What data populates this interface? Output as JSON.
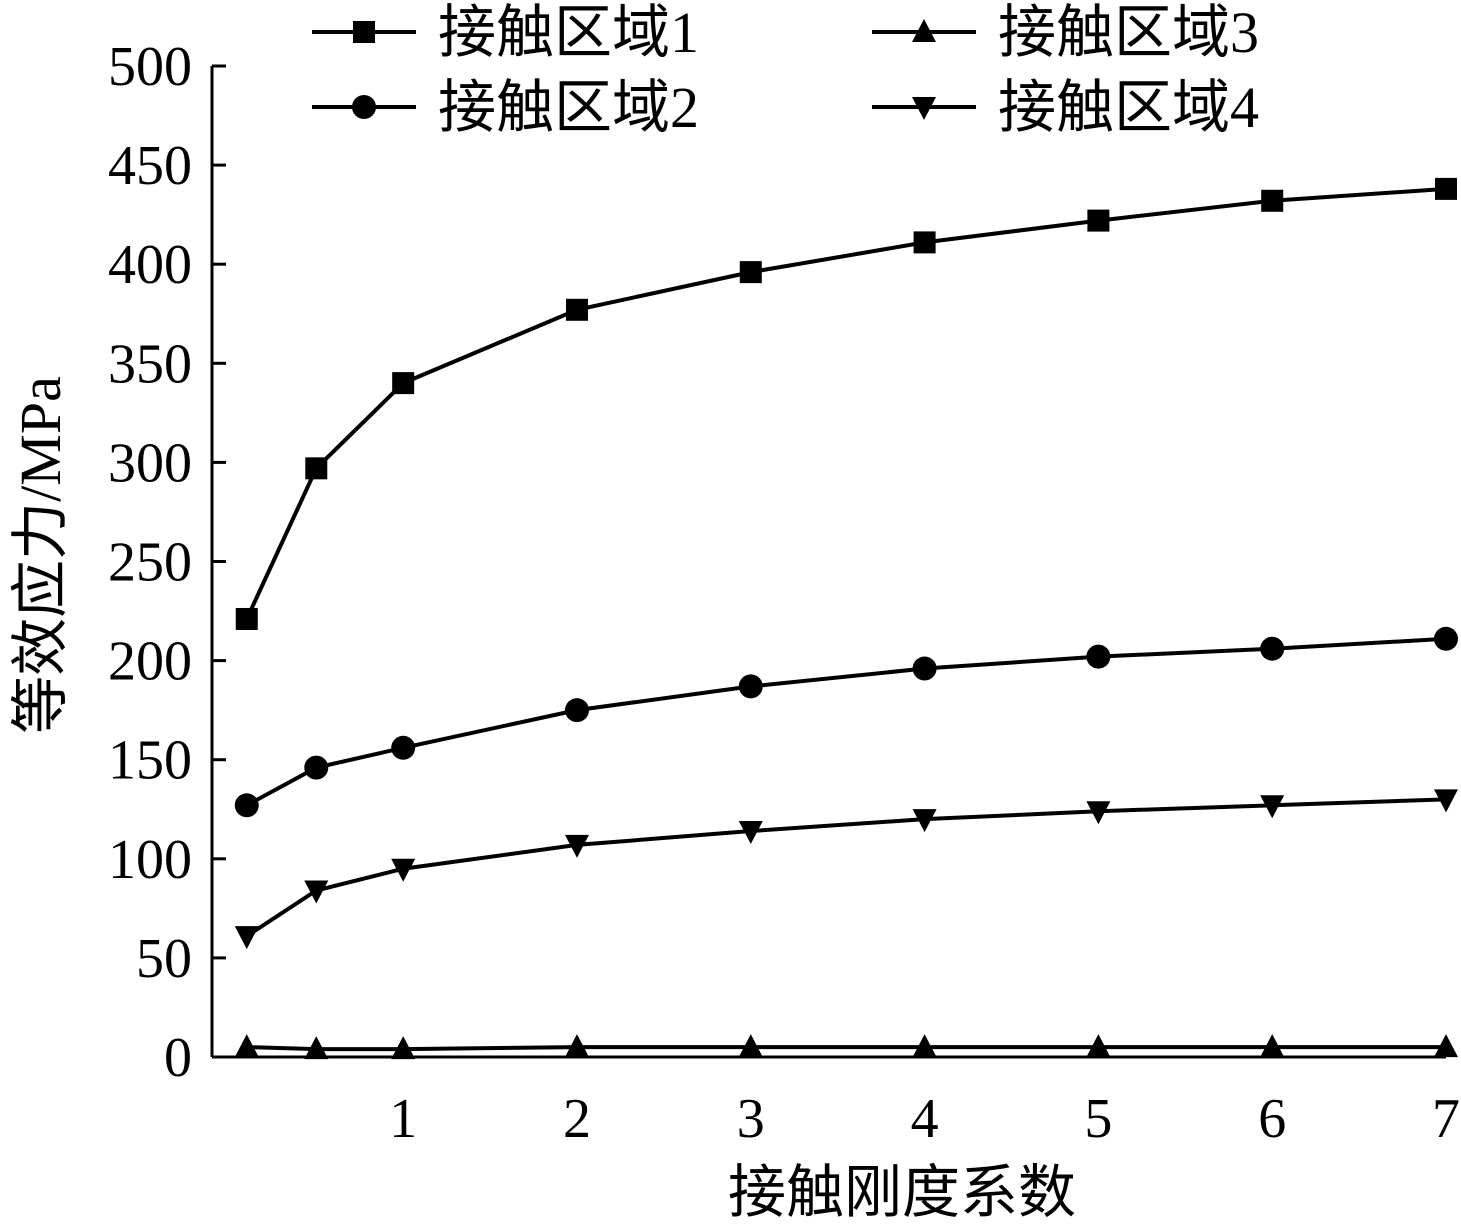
{
  "chart_data": {
    "type": "line",
    "title": "",
    "xlabel": "接触刚度系数",
    "ylabel": "等效应力/MPa",
    "xlim": [
      -0.1,
      7
    ],
    "ylim": [
      0,
      500
    ],
    "x": [
      0.1,
      0.5,
      1,
      2,
      3,
      4,
      5,
      6,
      7
    ],
    "xticks": [
      1,
      2,
      3,
      4,
      5,
      6,
      7
    ],
    "yticks": [
      0,
      50,
      100,
      150,
      200,
      250,
      300,
      350,
      400,
      450,
      500
    ],
    "grid": false,
    "legend_position": "top",
    "series": [
      {
        "name": "接触区域1",
        "marker": "square",
        "values": [
          221,
          297,
          340,
          377,
          396,
          411,
          422,
          432,
          438
        ]
      },
      {
        "name": "接触区域2",
        "marker": "circle",
        "values": [
          127,
          146,
          156,
          175,
          187,
          196,
          202,
          206,
          211
        ]
      },
      {
        "name": "接触区域3",
        "marker": "triangle-up",
        "values": [
          5,
          4,
          4,
          5,
          5,
          5,
          5,
          5,
          5
        ]
      },
      {
        "name": "接触区域4",
        "marker": "triangle-down",
        "values": [
          61,
          84,
          95,
          107,
          114,
          120,
          124,
          127,
          130
        ]
      }
    ]
  }
}
